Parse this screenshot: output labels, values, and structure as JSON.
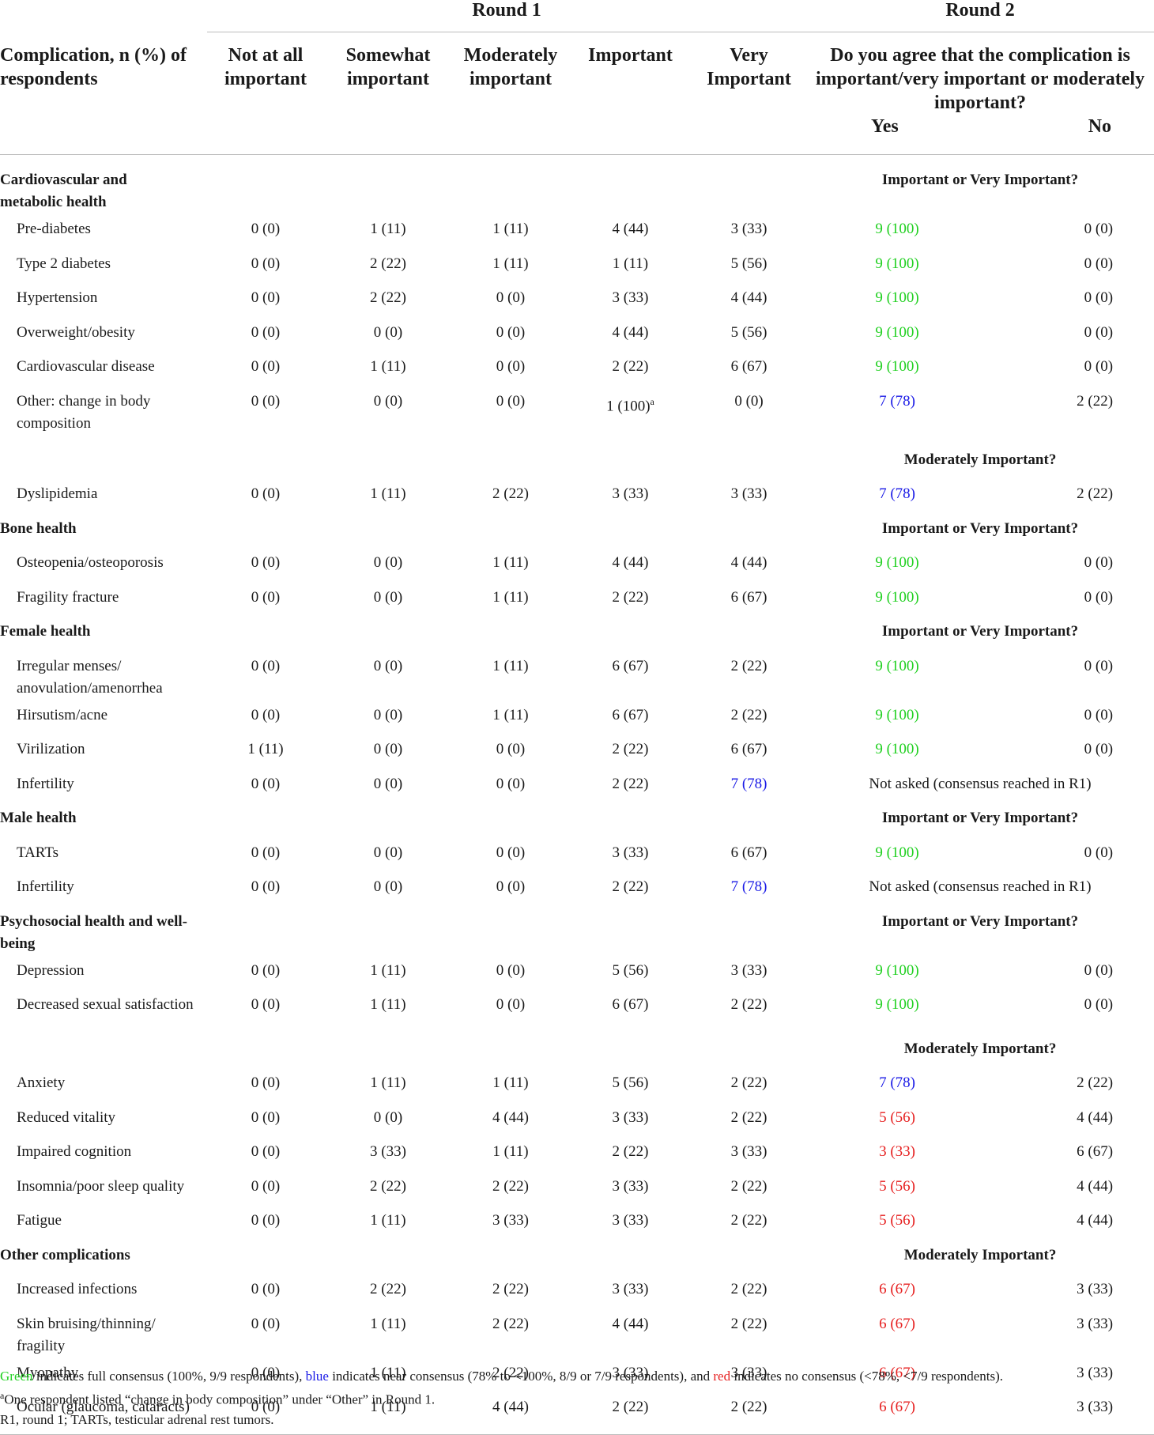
{
  "header": {
    "round1": "Round 1",
    "round2": "Round 2",
    "col_complication": "Complication, n (%) of respondents",
    "col_not_at_all": "Not at all important",
    "col_somewhat": "Somewhat important",
    "col_moderately": "Moderately important",
    "col_important": "Important",
    "col_very": "Very Important",
    "col_round2_question": "Do you agree that the complication is important/very important or moderately important?",
    "col_yes": "Yes",
    "col_no": "No"
  },
  "rows": [
    {
      "type": "cat",
      "label": "Cardiovascular and metabolic health",
      "sub": "Important or Very Important?"
    },
    {
      "type": "item",
      "label": "Pre-diabetes",
      "v": [
        "0 (0)",
        "1 (11)",
        "1 (11)",
        "4 (44)",
        "3 (33)"
      ],
      "yes": "9 (100)",
      "no": "0 (0)",
      "yc": "g"
    },
    {
      "type": "item",
      "label": "Type 2 diabetes",
      "v": [
        "0 (0)",
        "2 (22)",
        "1 (11)",
        "1 (11)",
        "5 (56)"
      ],
      "yes": "9 (100)",
      "no": "0 (0)",
      "yc": "g"
    },
    {
      "type": "item",
      "label": "Hypertension",
      "v": [
        "0 (0)",
        "2 (22)",
        "0 (0)",
        "3 (33)",
        "4 (44)"
      ],
      "yes": "9 (100)",
      "no": "0 (0)",
      "yc": "g"
    },
    {
      "type": "item",
      "label": "Overweight/obesity",
      "v": [
        "0 (0)",
        "0 (0)",
        "0 (0)",
        "4 (44)",
        "5 (56)"
      ],
      "yes": "9 (100)",
      "no": "0 (0)",
      "yc": "g"
    },
    {
      "type": "item",
      "label": "Cardiovascular disease",
      "v": [
        "0 (0)",
        "1 (11)",
        "0 (0)",
        "2 (22)",
        "6 (67)"
      ],
      "yes": "9 (100)",
      "no": "0 (0)",
      "yc": "g"
    },
    {
      "type": "item",
      "label": "Other: change in body composition",
      "v": [
        "0 (0)",
        "0 (0)",
        "0 (0)",
        "1 (100)",
        "0 (0)"
      ],
      "sup3": "a",
      "yes": "7 (78)",
      "no": "2 (22)",
      "yc": "b",
      "wrap": true
    },
    {
      "type": "subonly",
      "sub": "Moderately Important?"
    },
    {
      "type": "item",
      "label": "Dyslipidemia",
      "v": [
        "0 (0)",
        "1 (11)",
        "2 (22)",
        "3 (33)",
        "3 (33)"
      ],
      "yes": "7 (78)",
      "no": "2 (22)",
      "yc": "b"
    },
    {
      "type": "cat",
      "label": "Bone health",
      "sub": "Important or Very Important?"
    },
    {
      "type": "item",
      "label": "Osteopenia/osteoporosis",
      "v": [
        "0 (0)",
        "0 (0)",
        "1 (11)",
        "4 (44)",
        "4 (44)"
      ],
      "yes": "9 (100)",
      "no": "0 (0)",
      "yc": "g"
    },
    {
      "type": "item",
      "label": "Fragility fracture",
      "v": [
        "0 (0)",
        "0 (0)",
        "1 (11)",
        "2 (22)",
        "6 (67)"
      ],
      "yes": "9 (100)",
      "no": "0 (0)",
      "yc": "g"
    },
    {
      "type": "cat",
      "label": "Female health",
      "sub": "Important or Very Important?"
    },
    {
      "type": "item",
      "label": "Irregular menses/ anovulation/amenorrhea",
      "v": [
        "0 (0)",
        "0 (0)",
        "1 (11)",
        "6 (67)",
        "2 (22)"
      ],
      "yes": "9 (100)",
      "no": "0 (0)",
      "yc": "g",
      "wrap": true
    },
    {
      "type": "item",
      "label": "Hirsutism/acne",
      "v": [
        "0 (0)",
        "0 (0)",
        "1 (11)",
        "6 (67)",
        "2 (22)"
      ],
      "yes": "9 (100)",
      "no": "0 (0)",
      "yc": "g"
    },
    {
      "type": "item",
      "label": "Virilization",
      "v": [
        "1 (11)",
        "0 (0)",
        "0 (0)",
        "2 (22)",
        "6 (67)"
      ],
      "yes": "9 (100)",
      "no": "0 (0)",
      "yc": "g"
    },
    {
      "type": "item",
      "label": "Infertility",
      "v": [
        "0 (0)",
        "0 (0)",
        "0 (0)",
        "2 (22)",
        "7 (78)"
      ],
      "vc4": "b",
      "notasked": "Not asked (consensus reached in R1)"
    },
    {
      "type": "cat",
      "label": "Male health",
      "sub": "Important or Very Important?"
    },
    {
      "type": "item",
      "label": "TARTs",
      "v": [
        "0 (0)",
        "0 (0)",
        "0 (0)",
        "3 (33)",
        "6 (67)"
      ],
      "yes": "9 (100)",
      "no": "0 (0)",
      "yc": "g"
    },
    {
      "type": "item",
      "label": "Infertility",
      "v": [
        "0 (0)",
        "0 (0)",
        "0 (0)",
        "2 (22)",
        "7 (78)"
      ],
      "vc4": "b",
      "notasked": "Not asked (consensus reached in R1)"
    },
    {
      "type": "cat",
      "label": "Psychosocial health and well-being",
      "sub": "Important or Very Important?"
    },
    {
      "type": "item",
      "label": "Depression",
      "v": [
        "0 (0)",
        "1 (11)",
        "0 (0)",
        "5 (56)",
        "3 (33)"
      ],
      "yes": "9 (100)",
      "no": "0 (0)",
      "yc": "g"
    },
    {
      "type": "item",
      "label": "Decreased sexual satisfaction",
      "v": [
        "0 (0)",
        "1 (11)",
        "0 (0)",
        "6 (67)",
        "2 (22)"
      ],
      "yes": "9 (100)",
      "no": "0 (0)",
      "yc": "g",
      "wrap": true
    },
    {
      "type": "subonly",
      "sub": "Moderately Important?"
    },
    {
      "type": "item",
      "label": "Anxiety",
      "v": [
        "0 (0)",
        "1 (11)",
        "1 (11)",
        "5 (56)",
        "2 (22)"
      ],
      "yes": "7 (78)",
      "no": "2 (22)",
      "yc": "b"
    },
    {
      "type": "item",
      "label": "Reduced vitality",
      "v": [
        "0 (0)",
        "0 (0)",
        "4 (44)",
        "3 (33)",
        "2 (22)"
      ],
      "yes": "5 (56)",
      "no": "4 (44)",
      "yc": "r"
    },
    {
      "type": "item",
      "label": "Impaired cognition",
      "v": [
        "0 (0)",
        "3 (33)",
        "1 (11)",
        "2 (22)",
        "3 (33)"
      ],
      "yes": "3 (33)",
      "no": "6 (67)",
      "yc": "r"
    },
    {
      "type": "item",
      "label": "Insomnia/poor sleep quality",
      "v": [
        "0 (0)",
        "2 (22)",
        "2 (22)",
        "3 (33)",
        "2 (22)"
      ],
      "yes": "5 (56)",
      "no": "4 (44)",
      "yc": "r",
      "wrap": true
    },
    {
      "type": "item",
      "label": "Fatigue",
      "v": [
        "0 (0)",
        "1 (11)",
        "3 (33)",
        "3 (33)",
        "2 (22)"
      ],
      "yes": "5 (56)",
      "no": "4 (44)",
      "yc": "r"
    },
    {
      "type": "cat",
      "label": "Other complications",
      "sub": "Moderately Important?"
    },
    {
      "type": "item",
      "label": "Increased infections",
      "v": [
        "0 (0)",
        "2 (22)",
        "2 (22)",
        "3 (33)",
        "2 (22)"
      ],
      "yes": "6 (67)",
      "no": "3 (33)",
      "yc": "r"
    },
    {
      "type": "item",
      "label": "Skin bruising/thinning/ fragility",
      "v": [
        "0 (0)",
        "1 (11)",
        "2 (22)",
        "4 (44)",
        "2 (22)"
      ],
      "yes": "6 (67)",
      "no": "3 (33)",
      "yc": "r",
      "wrap": true
    },
    {
      "type": "item",
      "label": "Myopathy",
      "v": [
        "0 (0)",
        "1 (11)",
        "2 (22)",
        "3 (33)",
        "3 (33)"
      ],
      "yes": "6 (67)",
      "no": "3 (33)",
      "yc": "r"
    },
    {
      "type": "item",
      "label": "Ocular (glaucoma, cataracts)",
      "v": [
        "0 (0)",
        "1 (11)",
        "4 (44)",
        "2 (22)",
        "2 (22)"
      ],
      "yes": "6 (67)",
      "no": "3 (33)",
      "yc": "r",
      "wrap": true
    }
  ],
  "footnotes": {
    "line1": {
      "green_word": "Green",
      "text1": " indicates full consensus (100%, 9/9 respondents), ",
      "blue_word": "blue",
      "text2": " indicates near consensus (78% to <100%, 8/9 or 7/9 respondents), and ",
      "red_word": "red",
      "text3": " indicates no consensus (<78%, <7/9 respondents)."
    },
    "line2_sup": "a",
    "line2": "One respondent listed “change in body composition” under “Other” in Round 1.",
    "line3": "R1, round 1; TARTs, testicular adrenal rest tumors."
  },
  "colors": {
    "green": "#20d020",
    "blue": "#1a1ae6",
    "red": "#e62020"
  }
}
